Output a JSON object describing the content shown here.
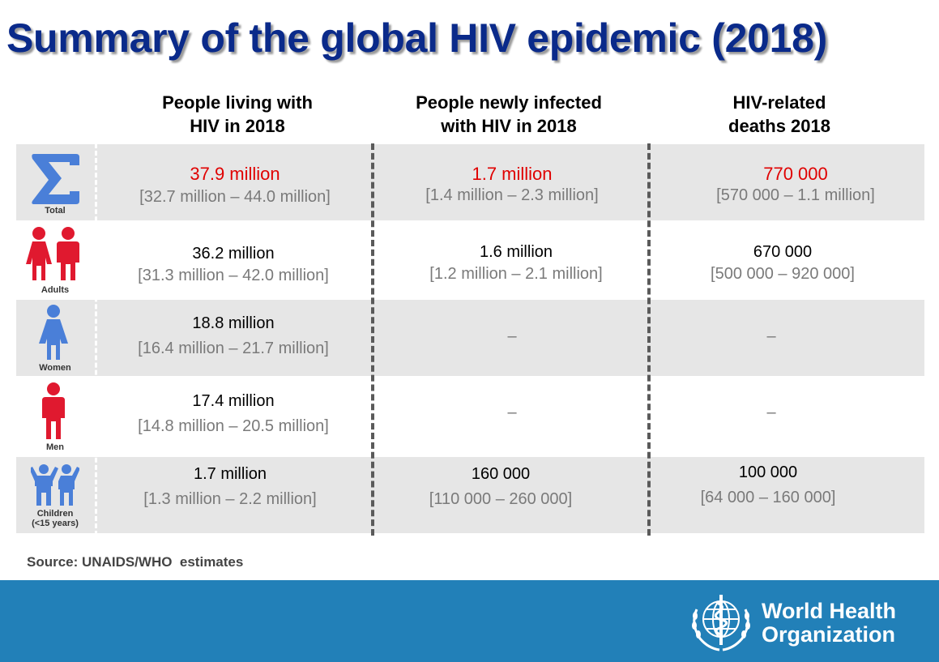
{
  "title": "Summary of the global HIV epidemic (2018)",
  "columns": [
    {
      "line1": "People living with",
      "line2": "HIV in 2018"
    },
    {
      "line1": "People newly infected",
      "line2": "with HIV in 2018"
    },
    {
      "line1": "HIV-related",
      "line2": "deaths 2018"
    }
  ],
  "rows": [
    {
      "icon": "sigma-icon",
      "label": "Total",
      "label2": "",
      "living": {
        "main": "37.9 million",
        "range": "[32.7 million – 44.0 million]"
      },
      "new": {
        "main": "1.7 million",
        "range": "[1.4 million – 2.3 million]"
      },
      "deaths": {
        "main": "770 000",
        "range": "[570 000 – 1.1 million]"
      }
    },
    {
      "icon": "adults-icon",
      "label": "Adults",
      "label2": "",
      "living": {
        "main": "36.2 million",
        "range": "[31.3 million – 42.0 million]"
      },
      "new": {
        "main": "1.6 million",
        "range": "[1.2 million – 2.1 million]"
      },
      "deaths": {
        "main": "670 000",
        "range": "[500 000 – 920 000]"
      }
    },
    {
      "icon": "woman-icon",
      "label": "Women",
      "label2": "",
      "living": {
        "main": "18.8 million",
        "range": "[16.4 million – 21.7 million]"
      },
      "new": {
        "dash": "–"
      },
      "deaths": {
        "dash": "–"
      }
    },
    {
      "icon": "man-icon",
      "label": "Men",
      "label2": "",
      "living": {
        "main": "17.4 million",
        "range": "[14.8 million – 20.5 million]"
      },
      "new": {
        "dash": "–"
      },
      "deaths": {
        "dash": "–"
      }
    },
    {
      "icon": "children-icon",
      "label": "Children",
      "label2": "(<15 years)",
      "living": {
        "main": "1.7 million",
        "range": "[1.3 million – 2.2 million]"
      },
      "new": {
        "main": "160 000",
        "range": "[110 000 – 260 000]"
      },
      "deaths": {
        "main": "100 000",
        "range": "[64 000 – 160 000]"
      }
    }
  ],
  "source": "Source: UNAIDS/WHO  estimates",
  "organization": {
    "line1": "World Health",
    "line2": "Organization"
  },
  "colors": {
    "title": "#0a2a8a",
    "highlight": "#e00000",
    "range_text": "#7a7a7a",
    "row_shade": "#e6e6e6",
    "footer": "#2280b8",
    "icon_blue": "#4a7fd8",
    "icon_red": "#e0192f"
  }
}
